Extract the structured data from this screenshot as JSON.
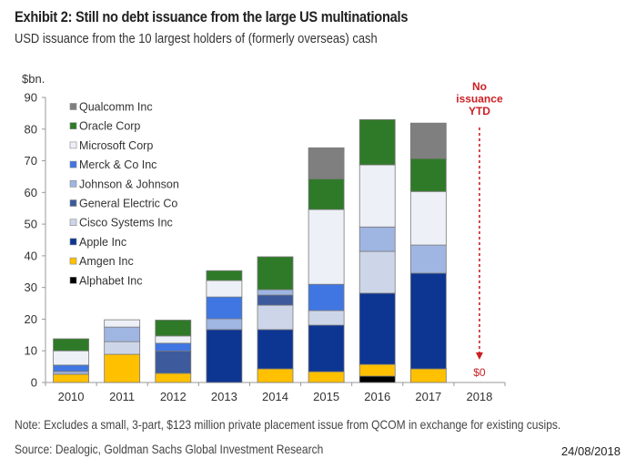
{
  "header": {
    "title": "Exhibit 2: Still no debt issuance from the large US multinationals",
    "subtitle": "USD issuance from the 10 largest holders of (formerly overseas) cash"
  },
  "footer": {
    "note": "Note: Excludes a small, 3-part, $123 million private placement issue from QCOM in exchange for existing cusips.",
    "source": "Source: Dealogic, Goldman Sachs Global Investment Research",
    "date": "24/08/2018"
  },
  "chart_data": {
    "type": "bar",
    "stacked": true,
    "title": "Exhibit 2: Still no debt issuance from the large US multinationals",
    "subtitle": "USD issuance from the 10 largest holders of (formerly overseas) cash",
    "xlabel": "",
    "ylabel": "$bn.",
    "ylim": [
      0,
      90
    ],
    "yticks": [
      0,
      10,
      20,
      30,
      40,
      50,
      60,
      70,
      80,
      90
    ],
    "grid": false,
    "legend_position": "top-left",
    "categories": [
      "2010",
      "2011",
      "2012",
      "2013",
      "2014",
      "2015",
      "2016",
      "2017",
      "2018"
    ],
    "series": [
      {
        "name": "Alphabet Inc",
        "color": "#000000",
        "values": [
          0,
          0,
          0,
          0,
          0,
          0,
          2.0,
          0,
          0
        ]
      },
      {
        "name": "Amgen Inc",
        "color": "#ffc000",
        "values": [
          2.6,
          8.9,
          2.9,
          0,
          4.3,
          3.4,
          3.7,
          4.3,
          0
        ]
      },
      {
        "name": "Apple Inc",
        "color": "#0d3592",
        "values": [
          0,
          0,
          0,
          16.7,
          12.4,
          14.7,
          22.5,
          30.2,
          0
        ]
      },
      {
        "name": "Cisco Systems Inc",
        "color": "#cdd6e8",
        "values": [
          0,
          4.0,
          0,
          0,
          7.7,
          4.6,
          13.2,
          0,
          0
        ]
      },
      {
        "name": "General Electric Co",
        "color": "#3d5b9c",
        "values": [
          0,
          0,
          7.0,
          0,
          3.2,
          0,
          0,
          0,
          0
        ]
      },
      {
        "name": "Johnson & Johnson",
        "color": "#9fb5e2",
        "values": [
          0.9,
          4.6,
          0,
          3.4,
          1.7,
          0,
          7.7,
          8.9,
          0
        ]
      },
      {
        "name": "Merck & Co Inc",
        "color": "#3f76e2",
        "values": [
          2.0,
          0,
          2.5,
          6.9,
          0,
          8.3,
          0,
          0,
          0
        ]
      },
      {
        "name": "Microsoft Corp",
        "color": "#edf0f6",
        "values": [
          4.5,
          2.3,
          2.3,
          5.2,
          0,
          23.6,
          19.6,
          16.9,
          0
        ]
      },
      {
        "name": "Oracle Corp",
        "color": "#2f7a28",
        "values": [
          3.8,
          0,
          5.0,
          3.1,
          10.4,
          9.7,
          14.3,
          10.4,
          0
        ]
      },
      {
        "name": "Qualcomm Inc",
        "color": "#7f7f7f",
        "values": [
          0,
          0,
          0,
          0,
          0,
          9.8,
          0,
          11.2,
          0
        ]
      }
    ],
    "legend_order": [
      "Qualcomm Inc",
      "Oracle Corp",
      "Microsoft Corp",
      "Merck & Co Inc",
      "Johnson & Johnson",
      "General Electric Co",
      "Cisco Systems Inc",
      "Apple Inc",
      "Amgen Inc",
      "Alphabet Inc"
    ],
    "annotations": [
      {
        "text_lines": [
          "No",
          "issuance",
          "YTD"
        ],
        "category": "2018",
        "color": "#cc1f24"
      },
      {
        "text": "$0",
        "category": "2018",
        "color": "#cc1f24"
      }
    ]
  }
}
